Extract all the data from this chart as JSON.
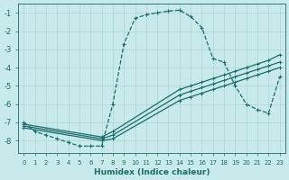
{
  "xlabel": "Humidex (Indice chaleur)",
  "bg_color": "#c8eaea",
  "grid_color": "#afd4d4",
  "line_color": "#1a6b6b",
  "xlim": [
    -0.5,
    23.5
  ],
  "ylim": [
    -8.7,
    -0.5
  ],
  "yticks": [
    -8,
    -7,
    -6,
    -5,
    -4,
    -3,
    -2,
    -1
  ],
  "xticks": [
    0,
    1,
    2,
    3,
    4,
    5,
    6,
    7,
    8,
    9,
    10,
    11,
    12,
    13,
    14,
    15,
    16,
    17,
    18,
    19,
    20,
    21,
    22,
    23
  ],
  "main_curve": {
    "x": [
      0,
      1,
      2,
      3,
      4,
      5,
      6,
      7,
      8,
      9,
      10,
      11,
      12,
      13,
      14,
      15,
      16,
      17,
      18,
      19,
      20,
      21,
      22,
      23
    ],
    "y": [
      -7.0,
      -7.5,
      -7.7,
      -7.9,
      -8.1,
      -8.3,
      -8.3,
      -8.3,
      -6.0,
      -2.7,
      -1.3,
      -1.1,
      -1.0,
      -0.9,
      -0.85,
      -1.2,
      -1.8,
      -3.5,
      -3.7,
      -5.0,
      -6.0,
      -6.3,
      -6.5,
      -4.5
    ]
  },
  "linear_lines": [
    {
      "x": [
        0,
        7,
        8,
        14,
        15,
        16,
        17,
        18,
        19,
        20,
        21,
        22,
        23
      ],
      "y": [
        -7.1,
        -7.8,
        -7.5,
        -5.2,
        -5.0,
        -4.8,
        -4.6,
        -4.4,
        -4.2,
        -4.0,
        -3.8,
        -3.6,
        -3.3
      ]
    },
    {
      "x": [
        0,
        7,
        8,
        14,
        15,
        16,
        17,
        18,
        19,
        20,
        21,
        22,
        23
      ],
      "y": [
        -7.2,
        -7.9,
        -7.7,
        -5.5,
        -5.3,
        -5.1,
        -4.9,
        -4.7,
        -4.5,
        -4.3,
        -4.1,
        -3.9,
        -3.7
      ]
    },
    {
      "x": [
        0,
        7,
        8,
        14,
        15,
        16,
        17,
        18,
        19,
        20,
        21,
        22,
        23
      ],
      "y": [
        -7.3,
        -8.0,
        -7.9,
        -5.8,
        -5.6,
        -5.4,
        -5.2,
        -5.0,
        -4.8,
        -4.6,
        -4.4,
        -4.2,
        -4.0
      ]
    }
  ]
}
